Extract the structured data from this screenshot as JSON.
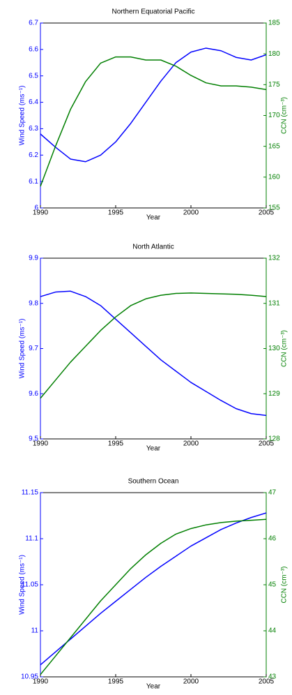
{
  "chart_data": [
    {
      "type": "line",
      "title": "Northern Equatorial Pacific",
      "x_label": "Year",
      "y_label": "Wind Speed (ms⁻¹)",
      "y2_label": "CCN (cm⁻³)",
      "x": [
        1990,
        1991,
        1992,
        1993,
        1994,
        1995,
        1996,
        1997,
        1998,
        1999,
        2000,
        2001,
        2002,
        2003,
        2004,
        2005
      ],
      "xlim": [
        1990,
        2005
      ],
      "xticks": [
        1990,
        1995,
        2000,
        2005
      ],
      "ylim": [
        6,
        6.7
      ],
      "yticks": [
        6,
        6.1,
        6.2,
        6.3,
        6.4,
        6.5,
        6.6,
        6.7
      ],
      "y2lim": [
        155,
        185
      ],
      "y2ticks": [
        155,
        160,
        165,
        170,
        175,
        180,
        185
      ],
      "series": [
        {
          "name": "Wind Speed",
          "color": "#0000ff",
          "values": [
            6.28,
            6.23,
            6.185,
            6.175,
            6.2,
            6.25,
            6.32,
            6.4,
            6.48,
            6.55,
            6.59,
            6.605,
            6.595,
            6.57,
            6.56,
            6.58
          ]
        },
        {
          "name": "CCN",
          "color": "#007f00",
          "axis": "y2",
          "values": [
            158.5,
            165,
            171,
            175.5,
            178.5,
            179.5,
            179.5,
            179,
            179,
            178,
            176.5,
            175.3,
            174.8,
            174.8,
            174.6,
            174.2
          ]
        }
      ]
    },
    {
      "type": "line",
      "title": "North Atlantic",
      "x_label": "Year",
      "y_label": "Wind Speed (ms⁻¹)",
      "y2_label": "CCN (cm⁻³)",
      "x": [
        1990,
        1991,
        1992,
        1993,
        1994,
        1995,
        1996,
        1997,
        1998,
        1999,
        2000,
        2001,
        2002,
        2003,
        2004,
        2005
      ],
      "xlim": [
        1990,
        2005
      ],
      "xticks": [
        1990,
        1995,
        2000,
        2005
      ],
      "ylim": [
        9.5,
        9.9
      ],
      "yticks": [
        9.5,
        9.6,
        9.7,
        9.8,
        9.9
      ],
      "y2lim": [
        128,
        132
      ],
      "y2ticks": [
        128,
        129,
        130,
        131,
        132
      ],
      "series": [
        {
          "name": "Wind Speed",
          "color": "#0000ff",
          "values": [
            9.815,
            9.825,
            9.827,
            9.815,
            9.795,
            9.765,
            9.735,
            9.705,
            9.675,
            9.65,
            9.625,
            9.605,
            9.585,
            9.567,
            9.556,
            9.552
          ]
        },
        {
          "name": "CCN",
          "color": "#007f00",
          "axis": "y2",
          "values": [
            128.9,
            129.3,
            129.7,
            130.05,
            130.4,
            130.7,
            130.95,
            131.1,
            131.18,
            131.22,
            131.23,
            131.22,
            131.21,
            131.2,
            131.18,
            131.15
          ]
        }
      ]
    },
    {
      "type": "line",
      "title": "Southern Ocean",
      "x_label": "Year",
      "y_label": "Wind Speed (ms⁻¹)",
      "y2_label": "CCN (cm⁻³)",
      "x": [
        1990,
        1991,
        1992,
        1993,
        1994,
        1995,
        1996,
        1997,
        1998,
        1999,
        2000,
        2001,
        2002,
        2003,
        2004,
        2005
      ],
      "xlim": [
        1990,
        2005
      ],
      "xticks": [
        1990,
        1995,
        2000,
        2005
      ],
      "ylim": [
        10.95,
        11.15
      ],
      "yticks": [
        10.95,
        11,
        11.05,
        11.1,
        11.15
      ],
      "y2lim": [
        43,
        47
      ],
      "y2ticks": [
        43,
        44,
        45,
        46,
        47
      ],
      "series": [
        {
          "name": "Wind Speed",
          "color": "#0000ff",
          "values": [
            10.963,
            10.977,
            10.991,
            11.005,
            11.019,
            11.032,
            11.045,
            11.058,
            11.07,
            11.081,
            11.092,
            11.101,
            11.11,
            11.117,
            11.123,
            11.128
          ]
        },
        {
          "name": "CCN",
          "color": "#007f00",
          "axis": "y2",
          "values": [
            43.05,
            43.45,
            43.85,
            44.25,
            44.65,
            45.0,
            45.35,
            45.65,
            45.9,
            46.1,
            46.22,
            46.3,
            46.35,
            46.38,
            46.4,
            46.42
          ]
        }
      ]
    }
  ]
}
